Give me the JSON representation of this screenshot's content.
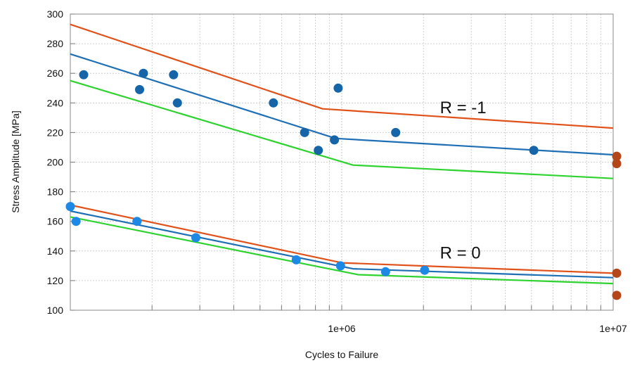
{
  "chart_data": {
    "type": "scatter",
    "title": "",
    "xlabel": "Cycles to Failure",
    "ylabel": "Stress Amplitude [MPa]",
    "x_scale": "log",
    "xlim": [
      100000,
      10000000
    ],
    "ylim": [
      100,
      300
    ],
    "yticks": [
      100,
      120,
      140,
      160,
      180,
      200,
      220,
      240,
      260,
      280,
      300
    ],
    "xtick_labels": [
      {
        "value": 1000000,
        "label": "1e+06"
      },
      {
        "value": 10000000,
        "label": "1e+07"
      }
    ],
    "grid": true,
    "annotations": [
      {
        "text": "R = -1",
        "x": 2300000,
        "y": 233
      },
      {
        "text": "R = 0",
        "x": 2300000,
        "y": 135
      }
    ],
    "series": [
      {
        "type": "line",
        "color": "#e0521a",
        "x": [
          100000,
          850000,
          10000000
        ],
        "y": [
          293,
          236,
          223
        ]
      },
      {
        "type": "line",
        "color": "#1f6fb5",
        "x": [
          100000,
          950000,
          10000000
        ],
        "y": [
          273,
          216,
          205
        ]
      },
      {
        "type": "line",
        "color": "#2fd32f",
        "x": [
          100000,
          1100000,
          10000000
        ],
        "y": [
          255,
          198,
          189
        ]
      },
      {
        "type": "line",
        "color": "#e0521a",
        "x": [
          100000,
          1000000,
          10000000
        ],
        "y": [
          171,
          132,
          125
        ]
      },
      {
        "type": "line",
        "color": "#1f6fb5",
        "x": [
          100000,
          1100000,
          10000000
        ],
        "y": [
          167,
          128,
          122
        ]
      },
      {
        "type": "line",
        "color": "#2fd32f",
        "x": [
          100000,
          1150000,
          10000000
        ],
        "y": [
          163,
          124,
          118
        ]
      },
      {
        "type": "scatter",
        "color": "#1565a8",
        "x": [
          112000,
          180000,
          186000,
          240000,
          248000,
          560000,
          730000,
          820000,
          940000,
          970000,
          1580000,
          5100000
        ],
        "y": [
          259,
          249,
          260,
          259,
          240,
          240,
          220,
          208,
          215,
          250,
          220,
          208
        ]
      },
      {
        "type": "scatter",
        "color": "#1e88e5",
        "x": [
          100000,
          105000,
          176000,
          290000,
          680000,
          990000,
          1450000,
          2020000
        ],
        "y": [
          170,
          160,
          160,
          149,
          134,
          130,
          126,
          127
        ]
      },
      {
        "type": "scatter",
        "color": "#b5461a",
        "x": [
          10300000,
          10300000,
          10300000,
          10300000
        ],
        "y": [
          204,
          199,
          125,
          110
        ]
      }
    ]
  }
}
